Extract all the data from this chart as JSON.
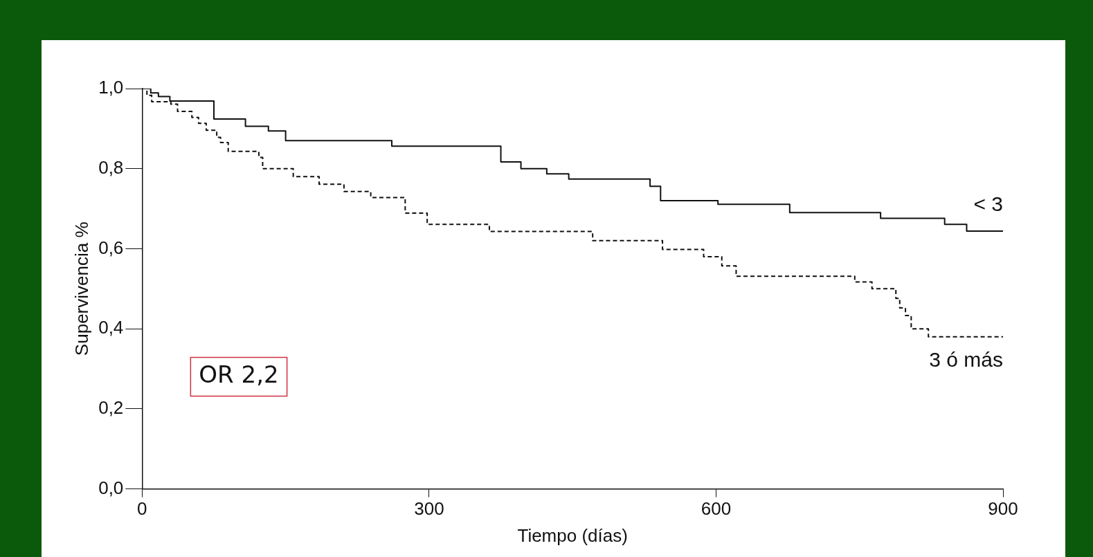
{
  "chart_data": {
    "type": "step",
    "xlabel": "Tiempo (días)",
    "ylabel": "Supervivencia %",
    "annotations": [
      "OR 2,2"
    ],
    "xlim": [
      0,
      900
    ],
    "xticks": [
      0,
      300,
      600,
      900
    ],
    "ylim": [
      0,
      1
    ],
    "yticks": [
      {
        "value": 0,
        "label": "0,0"
      },
      {
        "value": 0.2,
        "label": "0,2"
      },
      {
        "value": 0.4,
        "label": "0,4"
      },
      {
        "value": 0.6,
        "label": "0,6"
      },
      {
        "value": 0.8,
        "label": "0,8"
      },
      {
        "value": 1,
        "label": "1,0"
      }
    ],
    "grid": false,
    "legend": false,
    "marker": "none",
    "series": [
      {
        "name": "< 3",
        "color": "#111111",
        "line_style": "solid",
        "x": [
          0,
          9,
          17,
          29,
          75,
          108,
          132,
          150,
          261,
          375,
          396,
          423,
          446,
          531,
          542,
          602,
          677,
          772,
          839,
          862,
          883,
          900
        ],
        "values": [
          1,
          0.989,
          0.98,
          0.969,
          0.924,
          0.906,
          0.894,
          0.87,
          0.856,
          0.817,
          0.8,
          0.787,
          0.774,
          0.756,
          0.72,
          0.711,
          0.69,
          0.676,
          0.661,
          0.644,
          0.644,
          0.644
        ]
      },
      {
        "name": "3 ó más",
        "color": "#111111",
        "line_style": "dashed",
        "x": [
          0,
          5,
          10,
          30,
          37,
          52,
          59,
          67,
          78,
          82,
          90,
          122,
          126,
          158,
          185,
          211,
          239,
          275,
          298,
          363,
          471,
          544,
          587,
          606,
          621,
          745,
          763,
          788,
          792,
          798,
          804,
          809,
          822,
          900
        ],
        "values": [
          1,
          0.983,
          0.967,
          0.961,
          0.943,
          0.928,
          0.913,
          0.896,
          0.878,
          0.865,
          0.843,
          0.828,
          0.8,
          0.78,
          0.761,
          0.743,
          0.728,
          0.689,
          0.661,
          0.643,
          0.62,
          0.598,
          0.58,
          0.557,
          0.531,
          0.517,
          0.5,
          0.476,
          0.452,
          0.433,
          0.4,
          0.4,
          0.38,
          0.38
        ]
      }
    ]
  }
}
